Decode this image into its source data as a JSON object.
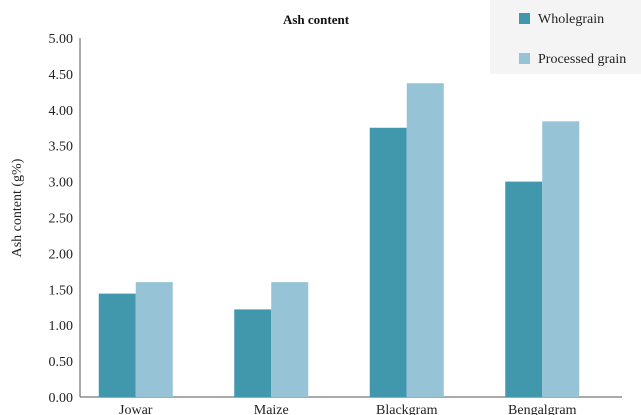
{
  "chart_data": {
    "type": "bar",
    "title": "Ash content",
    "xlabel": "",
    "ylabel": "Ash content (g%)",
    "categories": [
      "Jowar",
      "Maize",
      "Blackgram",
      "Bengalgram"
    ],
    "series": [
      {
        "name": "Wholegrain",
        "values": [
          1.44,
          1.22,
          3.75,
          3.0
        ],
        "color": "#4198ad"
      },
      {
        "name": "Processed grain",
        "values": [
          1.6,
          1.6,
          4.37,
          3.84
        ],
        "color": "#96c4d6"
      }
    ],
    "ylim": [
      0,
      5
    ],
    "yticks": [
      "0.00",
      "0.50",
      "1.00",
      "1.50",
      "2.00",
      "2.50",
      "3.00",
      "3.50",
      "4.00",
      "4.50",
      "5.00"
    ],
    "grid": false,
    "legend_position": "top-right"
  }
}
